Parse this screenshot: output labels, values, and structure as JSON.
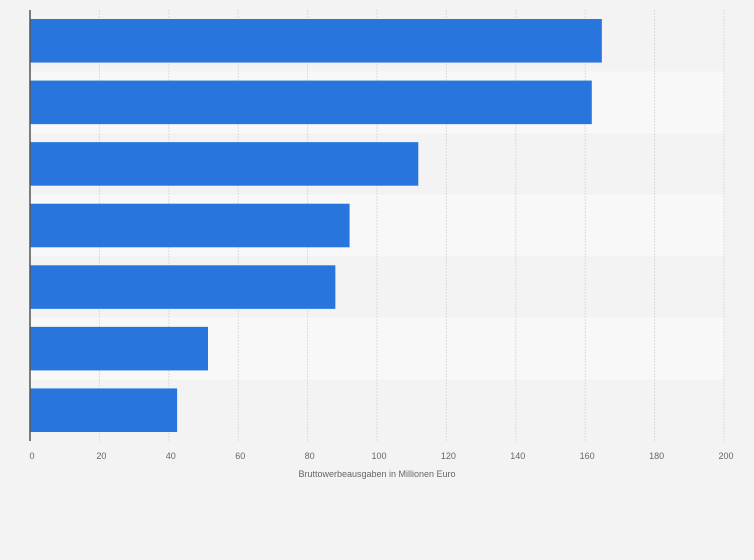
{
  "chart_data": {
    "type": "bar",
    "orientation": "horizontal",
    "categories": [
      "",
      "",
      "",
      "",
      "",
      "",
      ""
    ],
    "values": [
      164.8,
      161.9,
      111.9,
      92.1,
      88.0,
      51.3,
      42.4
    ],
    "title": "",
    "xlabel": "Bruttowerbeausgaben in Millionen Euro",
    "ylabel": "",
    "xlim": [
      0,
      200
    ],
    "xticks": [
      "0",
      "20",
      "40",
      "60",
      "80",
      "100",
      "120",
      "140",
      "160",
      "180",
      "200"
    ],
    "grid": true,
    "bar_color": "#2876dd"
  }
}
